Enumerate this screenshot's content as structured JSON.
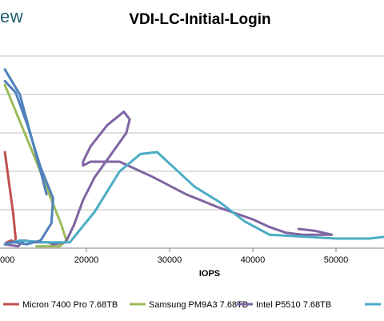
{
  "brand": {
    "text": "ew"
  },
  "chart_data": {
    "type": "line",
    "title": "VDI-LC-Initial-Login",
    "xlabel": "IOPS",
    "ylabel": "",
    "xlim": [
      10000,
      56000
    ],
    "ylim": [
      0,
      10
    ],
    "x_ticks": [
      20000,
      30000,
      40000,
      50000
    ],
    "x_tick_labels": [
      "20000",
      "30000",
      "40000",
      "50000"
    ],
    "partial_tick_label": "000",
    "grid": "horizontal",
    "legend_position": "bottom",
    "series": [
      {
        "name": "Micron 7400 Pro 7.68TB",
        "color": "#c0504d",
        "x": [
          10200,
          11200,
          11500,
          11400,
          11000,
          10400
        ],
        "y": [
          5.0,
          1.8,
          0.5,
          0.3,
          0.4,
          0.3
        ]
      },
      {
        "name": "Samsung PM9A3 7.68TB",
        "color": "#9bbb59",
        "x": [
          10200,
          12000,
          14000,
          16000,
          17000,
          17600,
          16800,
          15200,
          14000
        ],
        "y": [
          8.5,
          6.6,
          4.5,
          2.3,
          1.2,
          0.4,
          0.1,
          0.1,
          0.1
        ]
      },
      {
        "name": "Intel P5510 7.68TB",
        "color": "#8064a2",
        "x": [
          10200,
          11800,
          12500,
          14000,
          15400,
          16000,
          17500,
          18500,
          19600,
          21000,
          23000,
          24800,
          25200,
          24500,
          22500,
          20500,
          19600,
          19600,
          20500,
          24000,
          28000,
          32000,
          36000,
          40000,
          42000,
          44000,
          46000,
          48000,
          49500,
          47500,
          45500
        ],
        "y": [
          0.2,
          0.1,
          0.4,
          0.3,
          0.3,
          0.2,
          0.3,
          1.2,
          2.5,
          3.7,
          4.9,
          6.0,
          6.7,
          7.1,
          6.4,
          5.3,
          4.5,
          4.3,
          4.5,
          4.5,
          3.7,
          2.8,
          2.1,
          1.5,
          1.1,
          0.8,
          0.7,
          0.7,
          0.7,
          0.9,
          1.0
        ]
      },
      {
        "name": "",
        "color": "#4bacc6",
        "x": [
          10200,
          12000,
          15000,
          18000,
          21000,
          24000,
          26500,
          28500,
          30500,
          33000,
          36000,
          39000,
          42000,
          46000,
          50000,
          54000,
          56000
        ],
        "y": [
          0.2,
          0.4,
          0.3,
          0.3,
          1.9,
          4.0,
          4.9,
          5.0,
          4.2,
          3.2,
          2.4,
          1.4,
          0.7,
          0.6,
          0.5,
          0.5,
          0.6
        ]
      },
      {
        "name": "",
        "color": "#4f81bd",
        "legend": false,
        "x": [
          10200,
          11500,
          13000,
          14500,
          16000,
          15800,
          14500,
          12800,
          11500,
          10800,
          10200
        ],
        "y": [
          8.7,
          8.1,
          6.3,
          4.2,
          2.6,
          1.3,
          0.4,
          0.2,
          0.3,
          0.3,
          0.2
        ]
      },
      {
        "name": "",
        "color": "#4f81bd",
        "legend": false,
        "x": [
          10200,
          12000,
          13500,
          14500,
          15200
        ],
        "y": [
          9.3,
          8.0,
          5.6,
          4.0,
          2.8
        ]
      }
    ]
  }
}
